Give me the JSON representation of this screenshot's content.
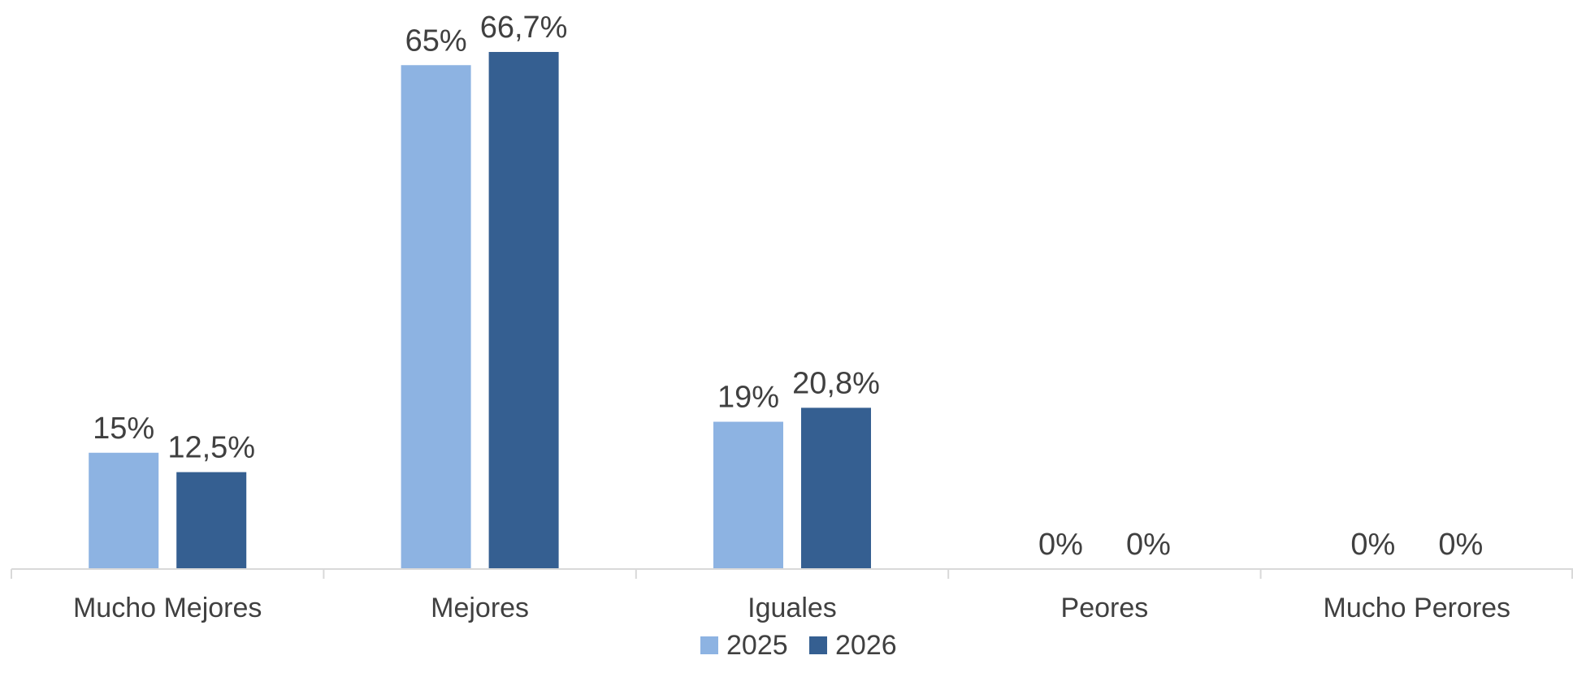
{
  "chart_data": {
    "type": "bar",
    "title": "",
    "xlabel": "",
    "ylabel": "",
    "categories": [
      "Mucho Mejores",
      "Mejores",
      "Iguales",
      "Peores",
      "Mucho Perores"
    ],
    "series": [
      {
        "name": "2025",
        "color": "#8db3e2",
        "values": [
          15,
          65,
          19,
          0,
          0
        ],
        "labels": [
          "15%",
          "65%",
          "19%",
          "0%",
          "0%"
        ]
      },
      {
        "name": "2026",
        "color": "#355f91",
        "values": [
          12.5,
          66.7,
          20.8,
          0,
          0
        ],
        "labels": [
          "12,5%",
          "66,7%",
          "20,8%",
          "0%",
          "0%"
        ]
      }
    ],
    "ylim": [
      0,
      70
    ],
    "grid": false,
    "y_axis_visible": false,
    "legend": "bottom-center"
  }
}
